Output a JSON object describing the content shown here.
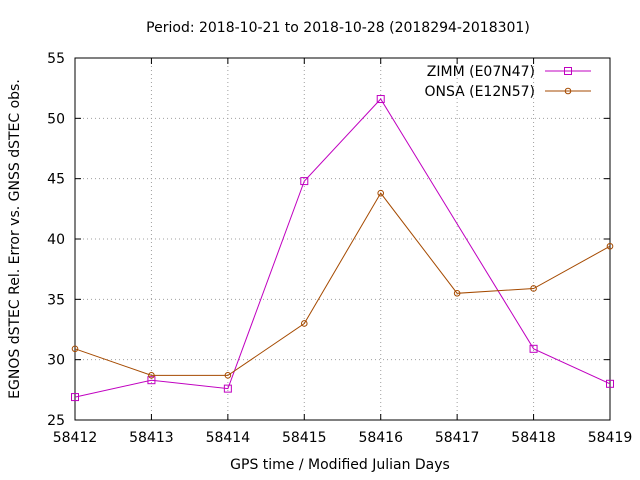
{
  "chart_data": {
    "type": "line",
    "title": "Period: 2018-10-21 to 2018-10-28 (2018294-2018301)",
    "xlabel": "GPS time / Modified Julian Days",
    "ylabel": "EGNOS dSTEC Rel. Error vs. GNSS dSTEC obs.",
    "x": [
      58412,
      58413,
      58414,
      58415,
      58416,
      58417,
      58418,
      58419
    ],
    "xlim": [
      58412,
      58419
    ],
    "ylim": [
      25,
      55
    ],
    "yticks": [
      25,
      30,
      35,
      40,
      45,
      50,
      55
    ],
    "grid": true,
    "legend_position": "top-right",
    "series": [
      {
        "name": "ZIMM (E07N47)",
        "color": "#c000c0",
        "marker": "square",
        "x": [
          58412,
          58413,
          58414,
          58415,
          58416,
          58418,
          58419
        ],
        "values": [
          26.9,
          28.3,
          27.6,
          44.8,
          51.6,
          30.9,
          28.0
        ]
      },
      {
        "name": "ONSA (E12N57)",
        "color": "#a54a00",
        "marker": "circle",
        "x": [
          58412,
          58413,
          58414,
          58415,
          58416,
          58417,
          58418,
          58419
        ],
        "values": [
          30.9,
          28.7,
          28.7,
          33.0,
          43.8,
          35.5,
          35.9,
          39.4
        ]
      }
    ]
  }
}
